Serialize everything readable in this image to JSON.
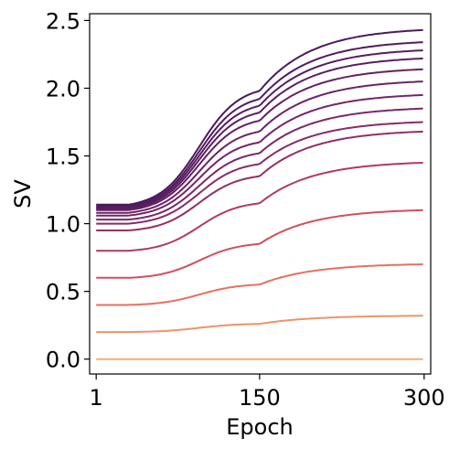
{
  "chart_data": {
    "type": "line",
    "title": "",
    "xlabel": "Epoch",
    "ylabel": "SV",
    "xlim": [
      -5,
      306
    ],
    "ylim": [
      -0.11,
      2.55
    ],
    "x_ticks": [
      1,
      150,
      300
    ],
    "x_tick_labels": [
      "1",
      "150",
      "300"
    ],
    "y_ticks": [
      0.0,
      0.5,
      1.0,
      1.5,
      2.0,
      2.5
    ],
    "y_tick_labels": [
      "0.0",
      "0.5",
      "1.0",
      "1.5",
      "2.0",
      "2.5"
    ],
    "grid": false,
    "legend": "none",
    "colormap": "flare (magma-like, dark purple for largest values to light orange for smallest)",
    "colors": {
      "largest": "#4b1a5e",
      "mid": "#d3425a",
      "smallest": "#f2b077"
    },
    "series_shape": "one line per singular value, sorted from largest (top) to smallest (bottom); each starts near its initial value at epoch 1, rises sigmoidally between roughly epoch 30 and epoch 160, then plateaus toward epoch 300",
    "series": [
      {
        "values_at": {
          "x": [
            1,
            30,
            150,
            300
          ],
          "y": [
            1.14,
            1.14,
            1.98,
            2.43
          ]
        }
      },
      {
        "values_at": {
          "x": [
            1,
            30,
            150,
            300
          ],
          "y": [
            1.13,
            1.13,
            1.92,
            2.34
          ]
        }
      },
      {
        "values_at": {
          "x": [
            1,
            30,
            150,
            300
          ],
          "y": [
            1.12,
            1.12,
            1.87,
            2.28
          ]
        }
      },
      {
        "values_at": {
          "x": [
            1,
            30,
            150,
            300
          ],
          "y": [
            1.11,
            1.11,
            1.82,
            2.22
          ]
        }
      },
      {
        "values_at": {
          "x": [
            1,
            30,
            150,
            300
          ],
          "y": [
            1.1,
            1.1,
            1.76,
            2.14
          ]
        }
      },
      {
        "values_at": {
          "x": [
            1,
            30,
            150,
            300
          ],
          "y": [
            1.08,
            1.08,
            1.68,
            2.05
          ]
        }
      },
      {
        "values_at": {
          "x": [
            1,
            30,
            150,
            300
          ],
          "y": [
            1.06,
            1.06,
            1.6,
            1.95
          ]
        }
      },
      {
        "values_at": {
          "x": [
            1,
            30,
            150,
            300
          ],
          "y": [
            1.03,
            1.03,
            1.52,
            1.85
          ]
        }
      },
      {
        "values_at": {
          "x": [
            1,
            30,
            150,
            300
          ],
          "y": [
            1.0,
            1.0,
            1.44,
            1.75
          ]
        }
      },
      {
        "values_at": {
          "x": [
            1,
            30,
            150,
            300
          ],
          "y": [
            0.95,
            0.95,
            1.35,
            1.68
          ]
        }
      },
      {
        "values_at": {
          "x": [
            1,
            30,
            150,
            300
          ],
          "y": [
            0.8,
            0.8,
            1.15,
            1.45
          ]
        }
      },
      {
        "values_at": {
          "x": [
            1,
            30,
            150,
            300
          ],
          "y": [
            0.6,
            0.6,
            0.85,
            1.1
          ]
        }
      },
      {
        "values_at": {
          "x": [
            1,
            30,
            150,
            300
          ],
          "y": [
            0.4,
            0.4,
            0.55,
            0.7
          ]
        }
      },
      {
        "values_at": {
          "x": [
            1,
            30,
            150,
            300
          ],
          "y": [
            0.2,
            0.2,
            0.26,
            0.32
          ]
        }
      },
      {
        "values_at": {
          "x": [
            1,
            30,
            150,
            300
          ],
          "y": [
            0.0,
            0.0,
            0.0,
            0.0
          ]
        }
      }
    ]
  }
}
